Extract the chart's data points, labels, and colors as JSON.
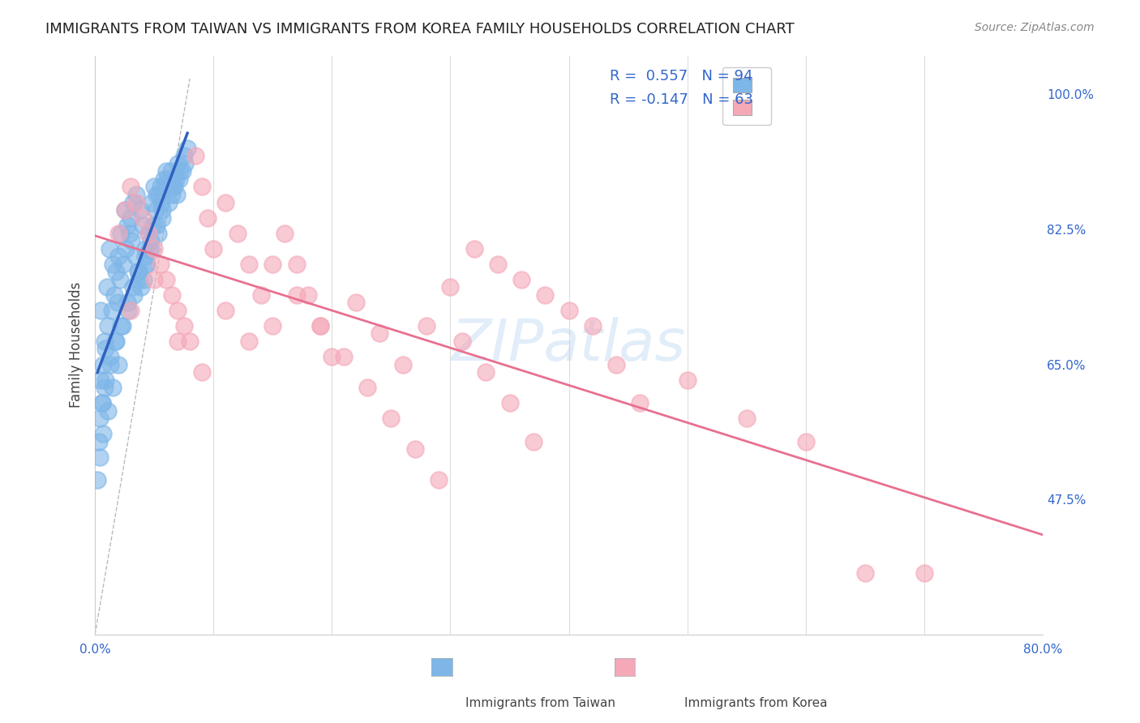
{
  "title": "IMMIGRANTS FROM TAIWAN VS IMMIGRANTS FROM KOREA FAMILY HOUSEHOLDS CORRELATION CHART",
  "source": "Source: ZipAtlas.com",
  "ylabel": "Family Households",
  "yticks": [
    "100.0%",
    "82.5%",
    "65.0%",
    "47.5%"
  ],
  "ytick_vals": [
    1.0,
    0.825,
    0.65,
    0.475
  ],
  "xlim": [
    0.0,
    0.8
  ],
  "ylim": [
    0.3,
    1.05
  ],
  "taiwan_R": "0.557",
  "taiwan_N": "94",
  "korea_R": "-0.147",
  "korea_N": "63",
  "taiwan_color": "#7EB6E8",
  "korea_color": "#F4A8B8",
  "taiwan_line_color": "#3060C0",
  "korea_line_color": "#E87090",
  "taiwan_scatter_x": [
    0.005,
    0.008,
    0.01,
    0.012,
    0.015,
    0.018,
    0.02,
    0.022,
    0.025,
    0.027,
    0.03,
    0.032,
    0.035,
    0.038,
    0.04,
    0.042,
    0.045,
    0.048,
    0.05,
    0.052,
    0.055,
    0.058,
    0.06,
    0.063,
    0.065,
    0.068,
    0.07,
    0.005,
    0.007,
    0.009,
    0.011,
    0.014,
    0.016,
    0.019,
    0.021,
    0.024,
    0.026,
    0.029,
    0.031,
    0.034,
    0.036,
    0.039,
    0.041,
    0.044,
    0.046,
    0.049,
    0.051,
    0.054,
    0.056,
    0.059,
    0.061,
    0.064,
    0.066,
    0.069,
    0.071,
    0.074,
    0.076,
    0.006,
    0.008,
    0.013,
    0.017,
    0.023,
    0.028,
    0.033,
    0.037,
    0.043,
    0.047,
    0.053,
    0.057,
    0.062,
    0.067,
    0.072,
    0.075,
    0.078,
    0.003,
    0.004,
    0.006,
    0.009,
    0.013,
    0.018,
    0.022,
    0.027,
    0.032,
    0.037,
    0.042,
    0.047,
    0.052,
    0.057,
    0.002,
    0.004,
    0.007,
    0.011,
    0.015,
    0.02
  ],
  "taiwan_scatter_y": [
    0.72,
    0.68,
    0.75,
    0.8,
    0.78,
    0.77,
    0.79,
    0.82,
    0.85,
    0.83,
    0.84,
    0.86,
    0.87,
    0.85,
    0.83,
    0.8,
    0.82,
    0.86,
    0.88,
    0.87,
    0.88,
    0.89,
    0.9,
    0.88,
    0.87,
    0.89,
    0.91,
    0.63,
    0.65,
    0.67,
    0.7,
    0.72,
    0.74,
    0.73,
    0.76,
    0.78,
    0.8,
    0.82,
    0.81,
    0.79,
    0.77,
    0.75,
    0.76,
    0.78,
    0.8,
    0.83,
    0.85,
    0.87,
    0.86,
    0.88,
    0.89,
    0.9,
    0.88,
    0.87,
    0.89,
    0.9,
    0.91,
    0.6,
    0.62,
    0.65,
    0.68,
    0.7,
    0.72,
    0.74,
    0.76,
    0.78,
    0.8,
    0.82,
    0.84,
    0.86,
    0.88,
    0.9,
    0.92,
    0.93,
    0.55,
    0.58,
    0.6,
    0.63,
    0.66,
    0.68,
    0.7,
    0.73,
    0.75,
    0.77,
    0.79,
    0.81,
    0.83,
    0.85,
    0.5,
    0.53,
    0.56,
    0.59,
    0.62,
    0.65
  ],
  "korea_scatter_x": [
    0.02,
    0.025,
    0.03,
    0.035,
    0.04,
    0.045,
    0.05,
    0.055,
    0.06,
    0.065,
    0.07,
    0.075,
    0.08,
    0.085,
    0.09,
    0.095,
    0.1,
    0.11,
    0.12,
    0.13,
    0.14,
    0.15,
    0.16,
    0.17,
    0.18,
    0.19,
    0.2,
    0.22,
    0.24,
    0.26,
    0.28,
    0.3,
    0.32,
    0.34,
    0.36,
    0.38,
    0.4,
    0.42,
    0.44,
    0.46,
    0.5,
    0.55,
    0.6,
    0.65,
    0.03,
    0.05,
    0.07,
    0.09,
    0.11,
    0.13,
    0.15,
    0.17,
    0.19,
    0.21,
    0.23,
    0.25,
    0.27,
    0.29,
    0.31,
    0.33,
    0.35,
    0.37,
    0.7
  ],
  "korea_scatter_y": [
    0.82,
    0.85,
    0.88,
    0.86,
    0.84,
    0.82,
    0.8,
    0.78,
    0.76,
    0.74,
    0.72,
    0.7,
    0.68,
    0.92,
    0.88,
    0.84,
    0.8,
    0.86,
    0.82,
    0.78,
    0.74,
    0.7,
    0.82,
    0.78,
    0.74,
    0.7,
    0.66,
    0.73,
    0.69,
    0.65,
    0.7,
    0.75,
    0.8,
    0.78,
    0.76,
    0.74,
    0.72,
    0.7,
    0.65,
    0.6,
    0.63,
    0.58,
    0.55,
    0.38,
    0.72,
    0.76,
    0.68,
    0.64,
    0.72,
    0.68,
    0.78,
    0.74,
    0.7,
    0.66,
    0.62,
    0.58,
    0.54,
    0.5,
    0.68,
    0.64,
    0.6,
    0.55,
    0.38
  ],
  "watermark": "ZIPatlas",
  "background_color": "#FFFFFF",
  "grid_color": "#DDDDDD"
}
